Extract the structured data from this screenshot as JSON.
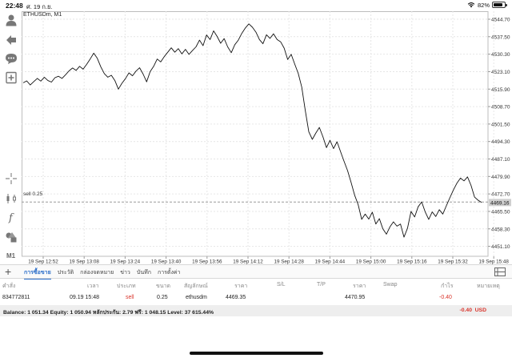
{
  "status_bar": {
    "time": "22:48",
    "date": "ศ. 19 ก.ย.",
    "battery": "82%",
    "battery_level": 0.82
  },
  "toolbar": {
    "icons": [
      "account-icon",
      "trade-icon",
      "chat-icon",
      "add-chart-icon",
      "crosshair-icon",
      "indicators-icon",
      "function-icon",
      "objects-icon"
    ],
    "timeframe": "M1"
  },
  "chart": {
    "title": "ETHUSDm, M1",
    "sell_line_label": "sell 0.25",
    "current_price": "4469.16",
    "sell_line_price": 4469.35,
    "colors": {
      "line": "#111111",
      "grid": "#e6e6e6",
      "sell_line": "#9a9a9a",
      "price_box": "#cfcfcf"
    }
  },
  "chart_data": {
    "type": "line",
    "title": "ETHUSDm, M1",
    "ylim": [
      4447.0,
      4548.0
    ],
    "y_ticks": [
      "4544.70",
      "4537.50",
      "4530.30",
      "4523.10",
      "4515.90",
      "4508.70",
      "4501.50",
      "4494.30",
      "4487.10",
      "4479.90",
      "4472.70",
      "4465.50",
      "4458.30",
      "4451.10"
    ],
    "y_tick_values": [
      4544.7,
      4537.5,
      4530.3,
      4523.1,
      4515.9,
      4508.7,
      4501.5,
      4494.3,
      4487.1,
      4479.9,
      4472.7,
      4465.5,
      4458.3,
      4451.1
    ],
    "x_ticks": [
      "19 Sep 12:52",
      "19 Sep 13:08",
      "19 Sep 13:24",
      "19 Sep 13:40",
      "19 Sep 13:56",
      "19 Sep 14:12",
      "19 Sep 14:28",
      "19 Sep 14:44",
      "19 Sep 15:00",
      "19 Sep 15:16",
      "19 Sep 15:32",
      "19 Sep 15:48"
    ],
    "grid": true,
    "series": [
      {
        "values": [
          4518.5,
          4519.3,
          4517.6,
          4519.0,
          4520.3,
          4519.2,
          4520.8,
          4519.4,
          4518.8,
          4520.6,
          4521.2,
          4520.3,
          4521.8,
          4523.4,
          4524.6,
          4523.6,
          4525.3,
          4524.1,
          4526.1,
          4528.3,
          4530.7,
          4528.6,
          4525.1,
          4522.3,
          4520.8,
          4521.6,
          4519.4,
          4515.9,
          4518.3,
          4520.2,
          4522.6,
          4521.4,
          4523.3,
          4524.7,
          4522.1,
          4518.9,
          4523.1,
          4525.3,
          4528.3,
          4527.1,
          4529.3,
          4531.1,
          4532.9,
          4531.1,
          4532.6,
          4530.4,
          4532.3,
          4530.2,
          4531.8,
          4533.3,
          4536.1,
          4533.8,
          4538.2,
          4536.3,
          4539.9,
          4537.6,
          4534.8,
          4536.7,
          4533.3,
          4530.9,
          4534.2,
          4536.1,
          4538.9,
          4541.1,
          4542.8,
          4541.4,
          4539.4,
          4536.3,
          4534.6,
          4538.3,
          4536.8,
          4538.7,
          4536.3,
          4535.4,
          4532.8,
          4528.1,
          4530.2,
          4526.2,
          4522.4,
          4516.7,
          4507.1,
          4498.3,
          4495.2,
          4497.8,
          4500.1,
          4496.2,
          4491.8,
          4494.8,
          4491.4,
          4494.2,
          4490.1,
          4486.1,
          4482.3,
          4477.4,
          4472.2,
          4468.3,
          4462.2,
          4464.4,
          4462.3,
          4465.2,
          4460.3,
          4462.5,
          4458.3,
          4456.1,
          4459.1,
          4461.2,
          4459.4,
          4460.3,
          4454.9,
          4458.6,
          4465.5,
          4463.2,
          4467.4,
          4469.4,
          4465.3,
          4462.2,
          4465.3,
          4463.4,
          4466.2,
          4464.4,
          4467.8,
          4471.1,
          4474.3,
          4477.1,
          4479.2,
          4478.1,
          4479.7,
          4476.2,
          4471.4,
          4470.1,
          4469.2
        ]
      }
    ]
  },
  "tabs": [
    {
      "label": "การซื้อขาย",
      "active": true
    },
    {
      "label": "ประวัติ",
      "active": false
    },
    {
      "label": "กล่องจดหมาย",
      "active": false
    },
    {
      "label": "ข่าว",
      "active": false
    },
    {
      "label": "บันทึก",
      "active": false
    },
    {
      "label": "การตั้งค่า",
      "active": false
    }
  ],
  "table": {
    "headers": {
      "order": "คำสั่ง",
      "time": "เวลา",
      "type": "ประเภท",
      "volume": "ขนาด",
      "symbol": "สัญลักษณ์",
      "price": "ราคา",
      "sl": "S/L",
      "tp": "T/P",
      "cur_price": "ราคา",
      "swap": "Swap",
      "profit": "กำไร",
      "comment": "หมายเหตุ"
    },
    "rows": [
      {
        "order": "834772811",
        "time": "09.19 15:48",
        "type": "sell",
        "volume": "0.25",
        "symbol": "ethusdm",
        "price": "4469.35",
        "sl": "",
        "tp": "",
        "cur_price": "4470.95",
        "swap": "",
        "profit": "-0.40"
      }
    ]
  },
  "balance": {
    "text": "Balance: 1 051.34 Equity: 1 050.94 หลักประกัน: 2.79 ฟรี: 1 048.15 Level: 37 615.44%",
    "profit": "-0.40",
    "currency": "USD"
  }
}
